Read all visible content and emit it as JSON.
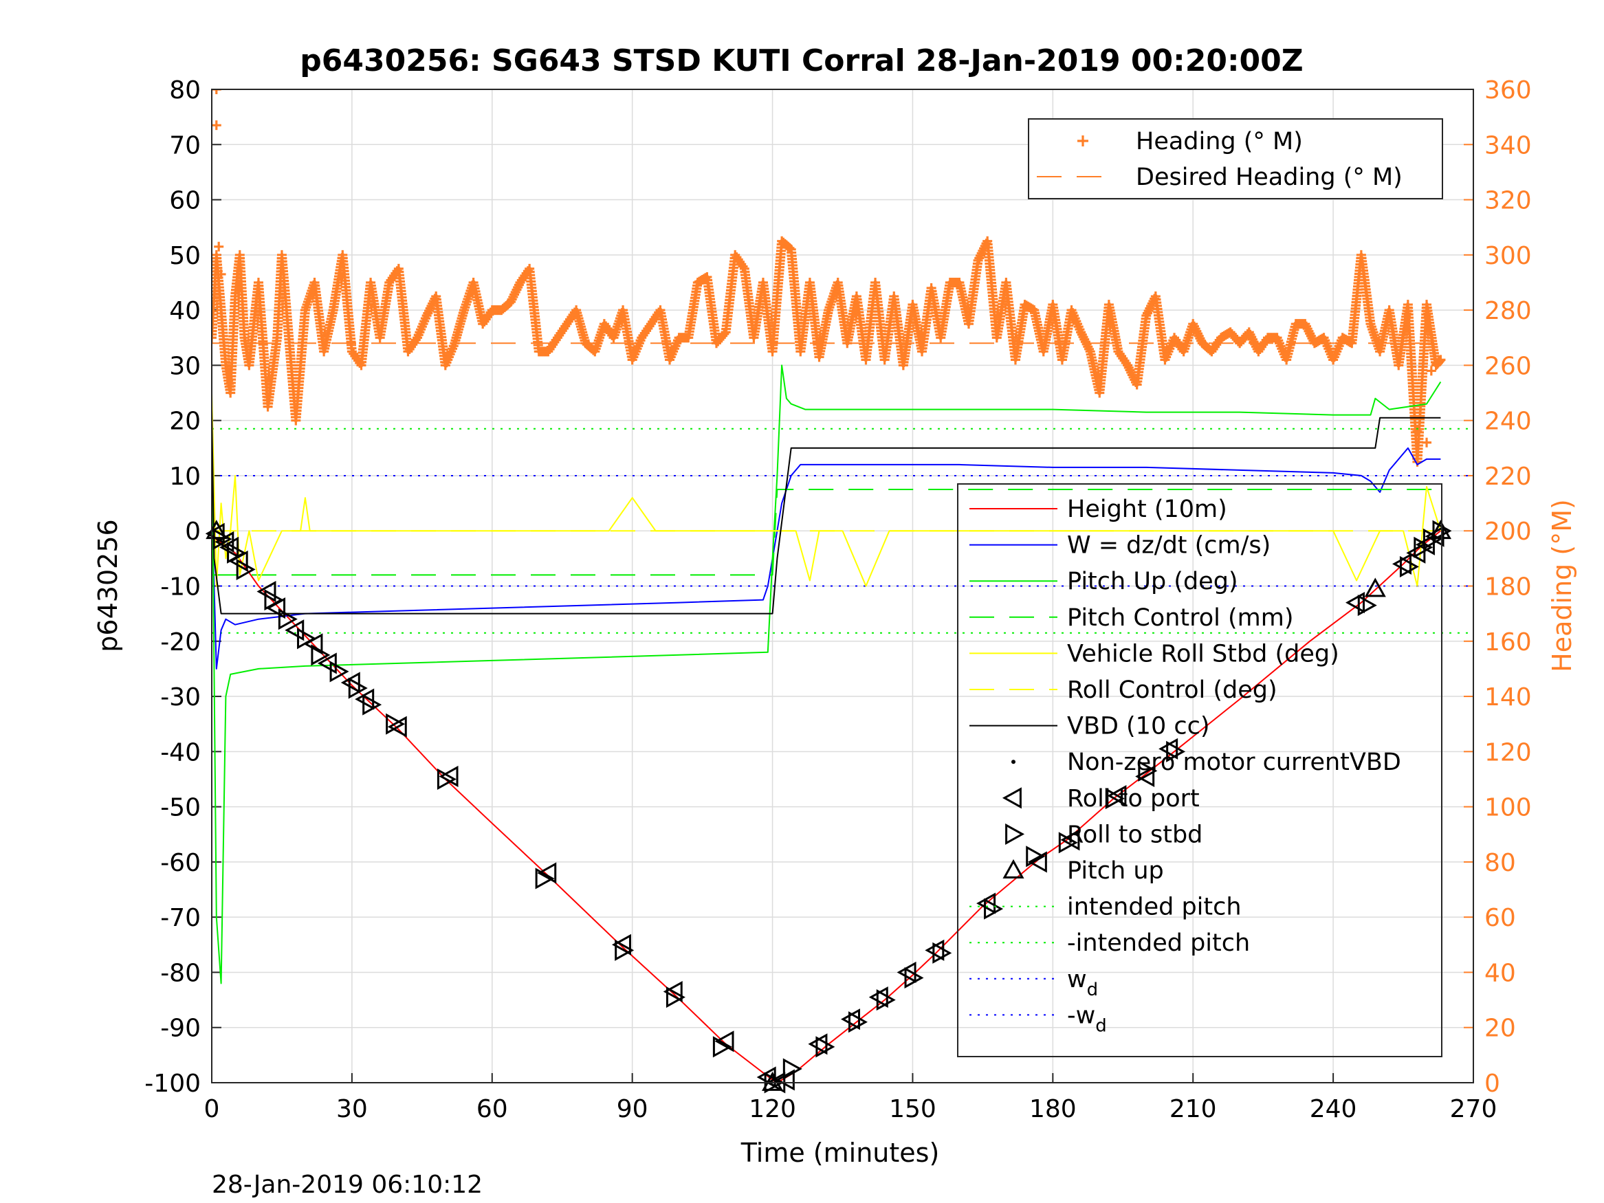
{
  "chart_data": {
    "type": "line",
    "title": "p6430256: SG643 STSD KUTI Corral 28-Jan-2019 00:20:00Z",
    "xlabel": "Time (minutes)",
    "ylabel": "p6430256",
    "y2label": "Heading (°M)",
    "footer": "28-Jan-2019 06:10:12",
    "xlim": [
      0,
      270
    ],
    "ylim": [
      -100,
      80
    ],
    "y2lim": [
      0,
      360
    ],
    "xticks": [
      0,
      30,
      60,
      90,
      120,
      150,
      180,
      210,
      240,
      270
    ],
    "yticks": [
      80,
      70,
      60,
      50,
      40,
      30,
      20,
      10,
      0,
      -10,
      -20,
      -30,
      -40,
      -50,
      -60,
      -70,
      -80,
      -90,
      -100
    ],
    "y2ticks": [
      360,
      340,
      320,
      300,
      280,
      260,
      240,
      220,
      200,
      180,
      160,
      140,
      120,
      100,
      80,
      60,
      40,
      20,
      0
    ],
    "grid": true,
    "legend_top": {
      "placement": "top-right",
      "entries": [
        {
          "label": "Heading (° M)",
          "color": "#ff7f27",
          "style": "plus"
        },
        {
          "label": "Desired Heading (° M)",
          "color": "#ff7f27",
          "style": "dashed"
        }
      ]
    },
    "legend_main": {
      "placement": "middle-right",
      "entries": [
        {
          "label": "Height (10m)",
          "color": "#ff0000",
          "style": "solid"
        },
        {
          "label": "W = dz/dt (cm/s)",
          "color": "#0000ff",
          "style": "solid"
        },
        {
          "label": "Pitch Up (deg)",
          "color": "#00ee00",
          "style": "solid"
        },
        {
          "label": "Pitch Control (mm)",
          "color": "#00ee00",
          "style": "dashed"
        },
        {
          "label": "Vehicle Roll Stbd (deg)",
          "color": "#ffff00",
          "style": "solid"
        },
        {
          "label": "Roll Control (deg)",
          "color": "#ffff00",
          "style": "dashed"
        },
        {
          "label": "VBD (10 cc)",
          "color": "#000000",
          "style": "solid"
        },
        {
          "label": "Non-zero motor currentVBD",
          "color": "#000000",
          "style": "dot"
        },
        {
          "label": "Roll to port",
          "color": "#000000",
          "style": "tri-left"
        },
        {
          "label": "Roll to stbd",
          "color": "#000000",
          "style": "tri-right"
        },
        {
          "label": "Pitch up",
          "color": "#000000",
          "style": "tri-up"
        },
        {
          "label": "intended pitch",
          "color": "#00ee00",
          "style": "dotted"
        },
        {
          "label": "-intended pitch",
          "color": "#00ee00",
          "style": "dotted"
        },
        {
          "label": "w",
          "sub": "d",
          "color": "#0000ff",
          "style": "dotted"
        },
        {
          "label": "-w",
          "sub": "d",
          "color": "#0000ff",
          "style": "dotted"
        }
      ]
    },
    "series": [
      {
        "name": "Height (10m)",
        "color": "#ff0000",
        "x": [
          0,
          5,
          10,
          20,
          30,
          40,
          50,
          60,
          72,
          88,
          99,
          110,
          120,
          121,
          125,
          132,
          138,
          144,
          150,
          155,
          165,
          177,
          183,
          193,
          200,
          206,
          220,
          235,
          246,
          255,
          258,
          260,
          263
        ],
        "y": [
          -1,
          -4,
          -10,
          -19,
          -28,
          -36,
          -45,
          -53,
          -62.5,
          -75.5,
          -84,
          -93,
          -99.5,
          -100,
          -98,
          -93,
          -89,
          -85,
          -80.5,
          -76.5,
          -68,
          -59.5,
          -56,
          -48.5,
          -44,
          -40,
          -30.5,
          -20,
          -13,
          -6,
          -3.5,
          -2,
          0
        ]
      },
      {
        "name": "W = dz/dt (cm/s)",
        "color": "#0000ff",
        "x": [
          0,
          1,
          2,
          3,
          5,
          10,
          20,
          40,
          60,
          80,
          100,
          118,
          119,
          120,
          122,
          124,
          126,
          140,
          160,
          180,
          200,
          220,
          240,
          246,
          248,
          250,
          252,
          254,
          256,
          258,
          260,
          263
        ],
        "y": [
          5,
          -25,
          -18,
          -16,
          -17,
          -16,
          -15,
          -14.5,
          -14,
          -13.5,
          -13,
          -12.5,
          -10,
          -5,
          5,
          10,
          12,
          12,
          12,
          11.5,
          11.5,
          11,
          10.5,
          10,
          9,
          7,
          11,
          13,
          15,
          12,
          13,
          13
        ]
      },
      {
        "name": "Pitch Up (deg)",
        "color": "#00ee00",
        "x": [
          0,
          1,
          2,
          3,
          4,
          10,
          20,
          40,
          60,
          80,
          100,
          119,
          120,
          121,
          122,
          123,
          124,
          127,
          140,
          160,
          180,
          200,
          220,
          240,
          248,
          249,
          252,
          256,
          260,
          263
        ],
        "y": [
          20,
          -70,
          -82,
          -30,
          -26,
          -25,
          -24.5,
          -24,
          -23.5,
          -23,
          -22.5,
          -22,
          -5,
          10,
          30,
          24,
          23,
          22,
          22,
          22,
          22,
          21.5,
          21.5,
          21,
          21,
          24,
          22,
          22.5,
          23,
          27
        ]
      },
      {
        "name": "Pitch Control (mm)",
        "color": "#00ee00",
        "dash": "36,22",
        "x": [
          0,
          120,
          121,
          263
        ],
        "y": [
          -8,
          -8,
          7.5,
          7.5
        ]
      },
      {
        "name": "Vehicle Roll Stbd (deg)",
        "color": "#ffff00",
        "x": [
          0,
          1,
          2,
          3,
          4,
          5,
          6,
          8,
          10,
          15,
          19,
          20,
          21,
          25,
          30,
          35,
          40,
          45,
          50,
          55,
          60,
          65,
          70,
          75,
          80,
          85,
          90,
          95,
          100,
          105,
          110,
          115,
          120,
          125,
          128,
          130,
          135,
          140,
          145,
          150,
          160,
          170,
          180,
          190,
          200,
          210,
          220,
          230,
          240,
          245,
          250,
          255,
          258,
          260,
          263
        ],
        "y": [
          25,
          -10,
          5,
          -5,
          0,
          10,
          -8,
          0,
          -9,
          0,
          0,
          6,
          0,
          0,
          0,
          0,
          0,
          0,
          0,
          0,
          0,
          0,
          0,
          0,
          0,
          0,
          6,
          0,
          0,
          0,
          0,
          0,
          0,
          0,
          -9,
          0,
          0,
          -10,
          0,
          0,
          0,
          0,
          0,
          0,
          0,
          0,
          0,
          0,
          0,
          -9,
          0,
          0,
          -10,
          8,
          0
        ]
      },
      {
        "name": "Roll Control (deg)",
        "color": "#ffff00",
        "dash": "36,22",
        "x": [
          0,
          263
        ],
        "y": [
          0,
          0
        ]
      },
      {
        "name": "VBD (10 cc)",
        "color": "#000000",
        "x": [
          0,
          0.5,
          2,
          120,
          121,
          124,
          135,
          160,
          200,
          249,
          250,
          263
        ],
        "y": [
          22,
          -5,
          -15,
          -15,
          -5,
          15,
          15,
          15,
          15,
          15,
          20.5,
          20.5
        ]
      }
    ],
    "reference_lines": [
      {
        "name": "intended pitch",
        "y": 18.5,
        "color": "#00ee00",
        "style": "dotted"
      },
      {
        "name": "-intended pitch",
        "y": -18.5,
        "color": "#00ee00",
        "style": "dotted"
      },
      {
        "name": "w_d",
        "y": 10,
        "color": "#0000ff",
        "style": "dotted"
      },
      {
        "name": "-w_d",
        "y": -10,
        "color": "#0000ff",
        "style": "dotted"
      }
    ],
    "desired_heading": 268,
    "heading": {
      "name": "Heading (° M)",
      "color": "#ff7f27",
      "x": [
        0,
        1,
        2,
        3,
        4,
        5,
        6,
        7,
        8,
        10,
        12,
        14,
        15,
        17,
        18,
        20,
        22,
        24,
        26,
        28,
        30,
        32,
        34,
        36,
        38,
        40,
        42,
        44,
        46,
        48,
        50,
        52,
        54,
        56,
        58,
        60,
        62,
        64,
        66,
        68,
        70,
        72,
        74,
        76,
        78,
        80,
        82,
        84,
        86,
        88,
        90,
        92,
        94,
        96,
        98,
        100,
        102,
        104,
        106,
        108,
        110,
        112,
        114,
        116,
        118,
        120,
        122,
        124,
        126,
        128,
        130,
        132,
        134,
        136,
        138,
        140,
        142,
        144,
        146,
        148,
        150,
        152,
        154,
        156,
        158,
        160,
        162,
        164,
        166,
        168,
        170,
        172,
        174,
        176,
        178,
        180,
        182,
        184,
        186,
        188,
        190,
        192,
        194,
        196,
        198,
        200,
        202,
        204,
        206,
        208,
        210,
        212,
        214,
        216,
        218,
        220,
        222,
        224,
        226,
        228,
        230,
        232,
        234,
        236,
        238,
        240,
        242,
        244,
        246,
        248,
        250,
        252,
        254,
        256,
        258,
        260,
        262,
        263
      ],
      "y": [
        270,
        300,
        280,
        260,
        250,
        285,
        300,
        270,
        260,
        290,
        245,
        270,
        300,
        260,
        240,
        280,
        290,
        265,
        280,
        300,
        265,
        260,
        290,
        270,
        290,
        295,
        265,
        270,
        278,
        285,
        260,
        268,
        280,
        290,
        275,
        280,
        280,
        283,
        290,
        295,
        265,
        265,
        270,
        275,
        280,
        268,
        265,
        275,
        270,
        280,
        262,
        270,
        275,
        280,
        262,
        270,
        270,
        290,
        292,
        268,
        272,
        300,
        295,
        270,
        290,
        265,
        305,
        302,
        265,
        290,
        263,
        280,
        290,
        268,
        285,
        262,
        290,
        262,
        285,
        260,
        282,
        265,
        288,
        270,
        290,
        290,
        275,
        298,
        305,
        270,
        290,
        262,
        282,
        280,
        265,
        282,
        262,
        280,
        272,
        265,
        250,
        282,
        265,
        260,
        253,
        278,
        285,
        262,
        270,
        265,
        275,
        268,
        265,
        270,
        272,
        268,
        272,
        265,
        270,
        270,
        262,
        275,
        275,
        268,
        270,
        262,
        270,
        268,
        300,
        275,
        265,
        280,
        260,
        282,
        225,
        282,
        260,
        262
      ],
      "outliers_x": [
        1,
        1,
        1.5,
        2,
        258,
        260,
        261
      ],
      "outliers_y": [
        360,
        347,
        303,
        293,
        236,
        232,
        258
      ]
    },
    "markers": {
      "roll_to_port": {
        "x": [
          1,
          3,
          4,
          6,
          12,
          14,
          18,
          22,
          25,
          30,
          33,
          40,
          51,
          72,
          88,
          99,
          110,
          119,
          121,
          123,
          130,
          137,
          143,
          149,
          155,
          166,
          177,
          184,
          194,
          200,
          205,
          245,
          255,
          258,
          260,
          262
        ],
        "y": [
          -0.5,
          -2,
          -3,
          -5.5,
          -11,
          -14,
          -18,
          -20.5,
          -24,
          -27.5,
          -30.5,
          -35.5,
          -44.5,
          -62,
          -75,
          -83.5,
          -92.5,
          -99,
          -100,
          -99.5,
          -93,
          -88.5,
          -84.5,
          -80,
          -76,
          -67.5,
          -60,
          -56,
          -48,
          -44.5,
          -39.5,
          -13,
          -6,
          -4,
          -2.5,
          -1
        ]
      },
      "roll_to_stbd": {
        "x": [
          2,
          5,
          7,
          13,
          16,
          20,
          23,
          27,
          31,
          34,
          39,
          50,
          71,
          88,
          99,
          109,
          120,
          124,
          131,
          138,
          144,
          150,
          156,
          167,
          176,
          183,
          193,
          200,
          206,
          247,
          256,
          259,
          261,
          263
        ],
        "y": [
          -1.5,
          -4,
          -7,
          -12.5,
          -16,
          -19.5,
          -22.5,
          -25.5,
          -28.5,
          -31.5,
          -35,
          -45,
          -63,
          -76,
          -84.5,
          -93.5,
          -100,
          -97.5,
          -93.5,
          -89,
          -85,
          -81,
          -76.5,
          -68.5,
          -59,
          -56.5,
          -48.5,
          -43.5,
          -40,
          -13.5,
          -6.5,
          -3,
          -1.5,
          0
        ]
      },
      "pitch_up": {
        "x": [
          1,
          120,
          249,
          263
        ],
        "y": [
          0,
          -100,
          -10.5,
          0
        ]
      }
    }
  }
}
